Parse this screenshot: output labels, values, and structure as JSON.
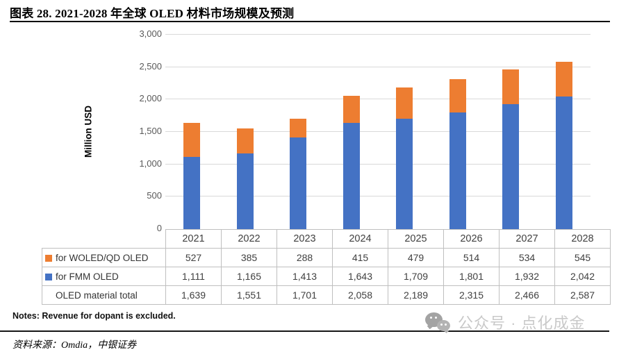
{
  "header": {
    "title": "图表 28. 2021-2028 年全球 OLED 材料市场规模及预测"
  },
  "chart_data": {
    "type": "bar",
    "stacked": true,
    "title": "2021-2028 年全球 OLED 材料市场规模及预测",
    "xlabel": "",
    "ylabel": "Million USD",
    "ylim": [
      0,
      3000
    ],
    "yticks": [
      "0",
      "500",
      "1,000",
      "1,500",
      "2,000",
      "2,500",
      "3,000"
    ],
    "grid": true,
    "legend_position": "table-below",
    "categories": [
      "2021",
      "2022",
      "2023",
      "2024",
      "2025",
      "2026",
      "2027",
      "2028"
    ],
    "series": [
      {
        "name": "for WOLED/QD OLED",
        "color": "#ED7D31",
        "stack_order": "top",
        "values": [
          527,
          385,
          288,
          415,
          479,
          514,
          534,
          545
        ]
      },
      {
        "name": "for FMM OLED",
        "color": "#4472C4",
        "stack_order": "bottom",
        "values": [
          1111,
          1165,
          1413,
          1643,
          1709,
          1801,
          1932,
          2042
        ]
      }
    ],
    "totals": {
      "name": "OLED material total",
      "values": [
        1639,
        1551,
        1701,
        2058,
        2189,
        2315,
        2466,
        2587
      ]
    }
  },
  "table": {
    "rows": [
      {
        "label": "for WOLED/QD OLED",
        "swatch": "#ED7D31",
        "values": [
          "527",
          "385",
          "288",
          "415",
          "479",
          "514",
          "534",
          "545"
        ]
      },
      {
        "label": "for FMM OLED",
        "swatch": "#4472C4",
        "values": [
          "1,111",
          "1,165",
          "1,413",
          "1,643",
          "1,709",
          "1,801",
          "1,932",
          "2,042"
        ]
      },
      {
        "label": "OLED material total",
        "swatch": null,
        "values": [
          "1,639",
          "1,551",
          "1,701",
          "2,058",
          "2,189",
          "2,315",
          "2,466",
          "2,587"
        ]
      }
    ]
  },
  "footer": {
    "notes": "Notes: Revenue for dopant is excluded.",
    "source": "资料来源：Omdia，中银证券",
    "watermark": "公众号 · 点化成金"
  },
  "colors": {
    "bar_blue": "#4472C4",
    "bar_orange": "#ED7D31",
    "gridline": "#D9D9D9",
    "table_border": "#BFBFBF",
    "axis_text": "#595959",
    "watermark_text": "#C9C9C9"
  }
}
